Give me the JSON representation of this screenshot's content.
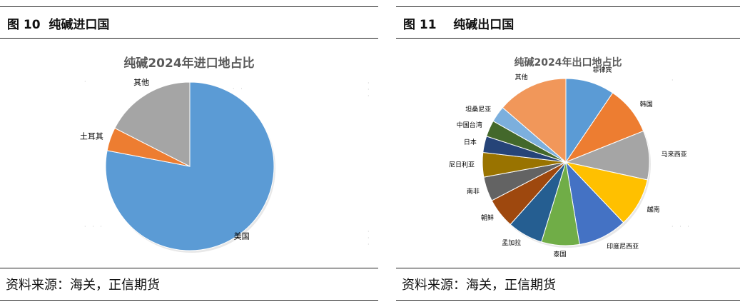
{
  "figures": [
    {
      "fig_title": "图 10  纯碱进口国",
      "source": "资料来源：海关，正信期货"
    },
    {
      "fig_title": "图 11    纯碱出口国",
      "source": "资料来源：海关，正信期货"
    }
  ],
  "chart_data": [
    {
      "type": "pie",
      "title": "纯碱2024年进口地占比",
      "slices": [
        {
          "label": "美国",
          "value": 78.0,
          "color": "#5B9BD5"
        },
        {
          "label": "土耳其",
          "value": 4.5,
          "color": "#ED7D31"
        },
        {
          "label": "其他",
          "value": 17.5,
          "color": "#A5A5A5"
        }
      ]
    },
    {
      "type": "pie",
      "title": "纯碱2024年出口地占比",
      "slices": [
        {
          "label": "菲律宾",
          "value": 9.0,
          "color": "#5B9BD5"
        },
        {
          "label": "韩国",
          "value": 9.0,
          "color": "#ED7D31"
        },
        {
          "label": "马来西亚",
          "value": 9.0,
          "color": "#A5A5A5"
        },
        {
          "label": "越南",
          "value": 9.0,
          "color": "#FFC000"
        },
        {
          "label": "印度尼西亚",
          "value": 9.0,
          "color": "#4472C4"
        },
        {
          "label": "泰国",
          "value": 7.0,
          "color": "#70AD47"
        },
        {
          "label": "孟加拉",
          "value": 6.5,
          "color": "#255E91"
        },
        {
          "label": "朝鲜",
          "value": 5.5,
          "color": "#9E480E"
        },
        {
          "label": "南非",
          "value": 4.5,
          "color": "#636363"
        },
        {
          "label": "尼日利亚",
          "value": 4.5,
          "color": "#997300"
        },
        {
          "label": "日本",
          "value": 3.0,
          "color": "#264478"
        },
        {
          "label": "中国台湾",
          "value": 3.0,
          "color": "#43682B"
        },
        {
          "label": "坦桑尼亚",
          "value": 3.0,
          "color": "#7CAFDD"
        },
        {
          "label": "其他",
          "value": 13.0,
          "color": "#F1975A"
        }
      ]
    }
  ]
}
